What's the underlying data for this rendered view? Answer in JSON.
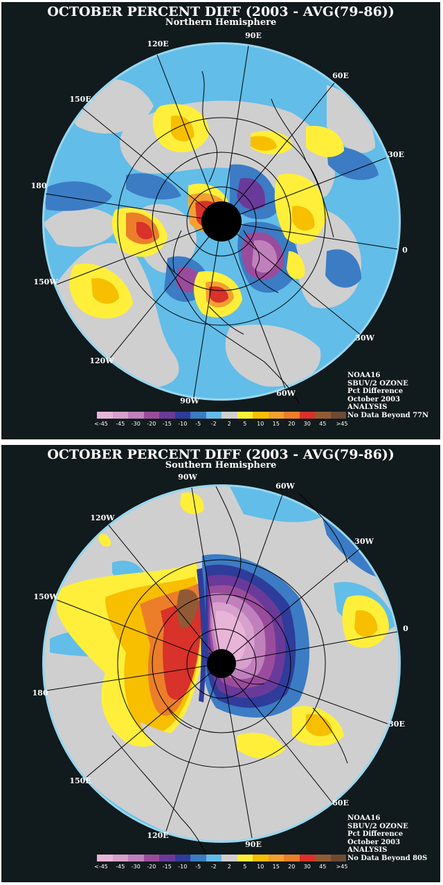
{
  "panels": [
    {
      "id": "north",
      "title": "OCTOBER PERCENT DIFF (2003 - AVG(79-86))",
      "subtitle": "Northern Hemisphere",
      "longitude_labels": [
        "90E",
        "60E",
        "30E",
        "0",
        "30W",
        "60W",
        "90W",
        "120W",
        "150W",
        "180",
        "150E",
        "120E"
      ],
      "info_lines": [
        "NOAA16",
        "SBUV/2 OZONE",
        "Pct Difference",
        "October 2003",
        "ANALYSIS",
        "No Data Beyond 77N"
      ]
    },
    {
      "id": "south",
      "title": "OCTOBER PERCENT DIFF (2003 - AVG(79-86))",
      "subtitle": "Southern Hemisphere",
      "longitude_labels": [
        "90W",
        "60W",
        "30W",
        "0",
        "30E",
        "60E",
        "90E",
        "120E",
        "150E",
        "180",
        "150W",
        "120W"
      ],
      "info_lines": [
        "NOAA16",
        "SBUV/2 OZONE",
        "Pct Difference",
        "October 2003",
        "ANALYSIS",
        "No Data Beyond 80S"
      ]
    }
  ],
  "legend": {
    "labels": [
      "<-45",
      "-45",
      "-30",
      "-20",
      "-15",
      "-10",
      "-5",
      "-2",
      "2",
      "5",
      "10",
      "15",
      "20",
      "30",
      "45",
      ">45"
    ],
    "colors": [
      "#e8b4d8",
      "#d8a0cc",
      "#c080bc",
      "#9a4c9c",
      "#6a3a9a",
      "#2f3c9a",
      "#3b7cc4",
      "#62bde8",
      "#cfcfcf",
      "#ffef3a",
      "#f7bf00",
      "#f3a030",
      "#ec7e2a",
      "#d8322a",
      "#925a34",
      "#6e4a36"
    ]
  }
}
